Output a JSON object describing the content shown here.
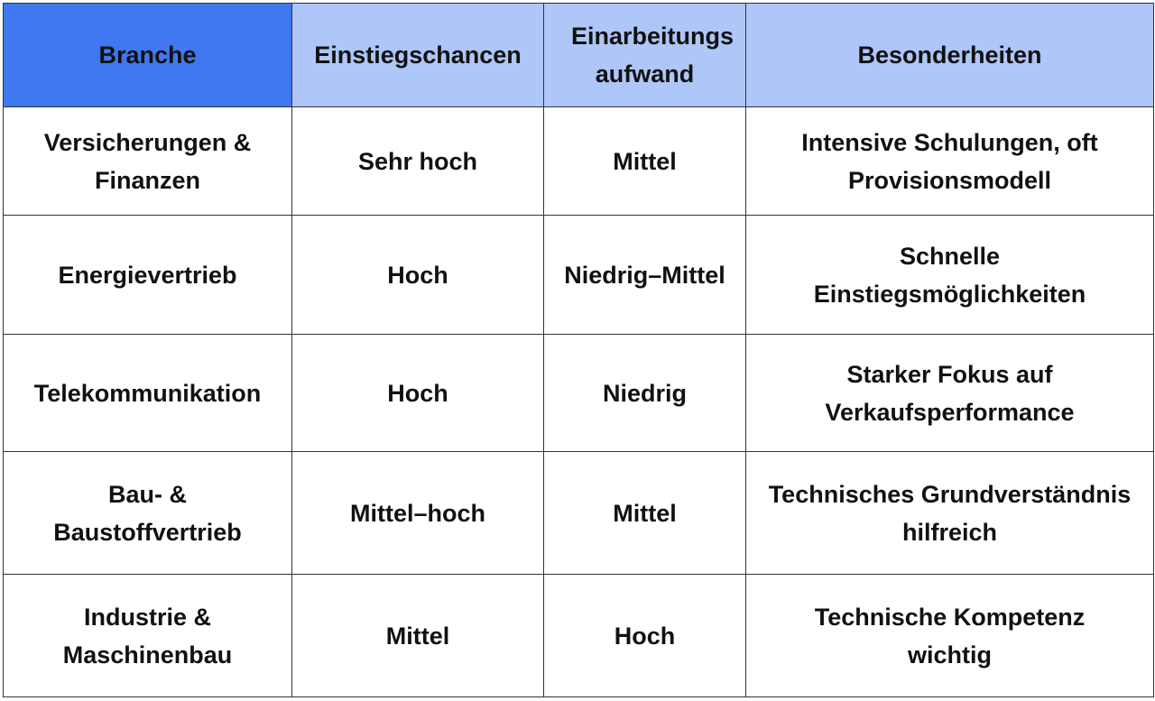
{
  "colors": {
    "header_first": "#3f78f0",
    "header": "#aec6f8",
    "border": "#333333"
  },
  "table": {
    "headers": [
      "Branche",
      "Einstiegschancen",
      "Einarbeitungs aufwand",
      "Besonderheiten"
    ],
    "rows": [
      [
        "Versicherungen & Finanzen",
        "Sehr hoch",
        "Mittel",
        "Intensive Schulungen, oft Provisionsmodell"
      ],
      [
        "Energievertrieb",
        "Hoch",
        "Niedrig–Mittel",
        "Schnelle Einstiegsmöglichkeiten"
      ],
      [
        "Telekommunikation",
        "Hoch",
        "Niedrig",
        "Starker Fokus auf Verkaufsperformance"
      ],
      [
        "Bau- & Baustoffvertrieb",
        "Mittel–hoch",
        "Mittel",
        "Technisches Grundverständnis hilfreich"
      ],
      [
        "Industrie & Maschinenbau",
        "Mittel",
        "Hoch",
        "Technische Kompetenz wichtig"
      ]
    ]
  }
}
